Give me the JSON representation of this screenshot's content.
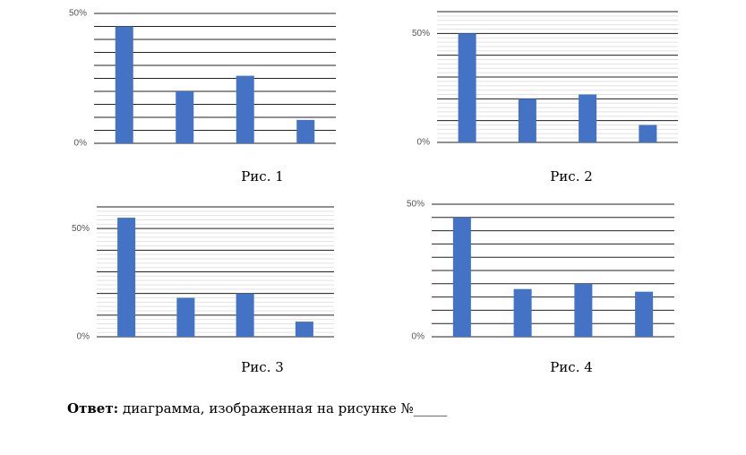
{
  "chart_data": [
    {
      "type": "bar",
      "caption": "Рис. 1",
      "categories": [
        null,
        null,
        null,
        null
      ],
      "values": [
        45,
        20,
        26,
        9
      ],
      "color": "#4472c4",
      "ylim": [
        0,
        50
      ],
      "yticks": [
        {
          "value": 0,
          "label": "0%"
        },
        {
          "value": 50,
          "label": "50%"
        }
      ],
      "grid": {
        "major": 5
      }
    },
    {
      "type": "bar",
      "caption": "Рис. 2",
      "categories": [
        null,
        null,
        null,
        null
      ],
      "values": [
        50,
        20,
        22,
        8
      ],
      "color": "#4472c4",
      "ylim": [
        0,
        60
      ],
      "yticks": [
        {
          "value": 0,
          "label": "0%"
        },
        {
          "value": 50,
          "label": "50%"
        }
      ],
      "grid": {
        "major": 10,
        "minor": 2
      }
    },
    {
      "type": "bar",
      "caption": "Рис. 3",
      "categories": [
        null,
        null,
        null,
        null
      ],
      "values": [
        55,
        18,
        20,
        7
      ],
      "color": "#4472c4",
      "ylim": [
        0,
        60
      ],
      "yticks": [
        {
          "value": 0,
          "label": "0%"
        },
        {
          "value": 50,
          "label": "50%"
        }
      ],
      "grid": {
        "major": 10,
        "minor": 2
      }
    },
    {
      "type": "bar",
      "caption": "Рис. 4",
      "categories": [
        null,
        null,
        null,
        null
      ],
      "values": [
        45,
        18,
        20,
        17
      ],
      "color": "#4472c4",
      "ylim": [
        0,
        50
      ],
      "yticks": [
        {
          "value": 0,
          "label": "0%"
        },
        {
          "value": 50,
          "label": "50%"
        }
      ],
      "grid": {
        "major": 5
      }
    }
  ],
  "answer": {
    "label": "Ответ:",
    "text": "диаграмма, изображенная на рисунке №_____"
  }
}
